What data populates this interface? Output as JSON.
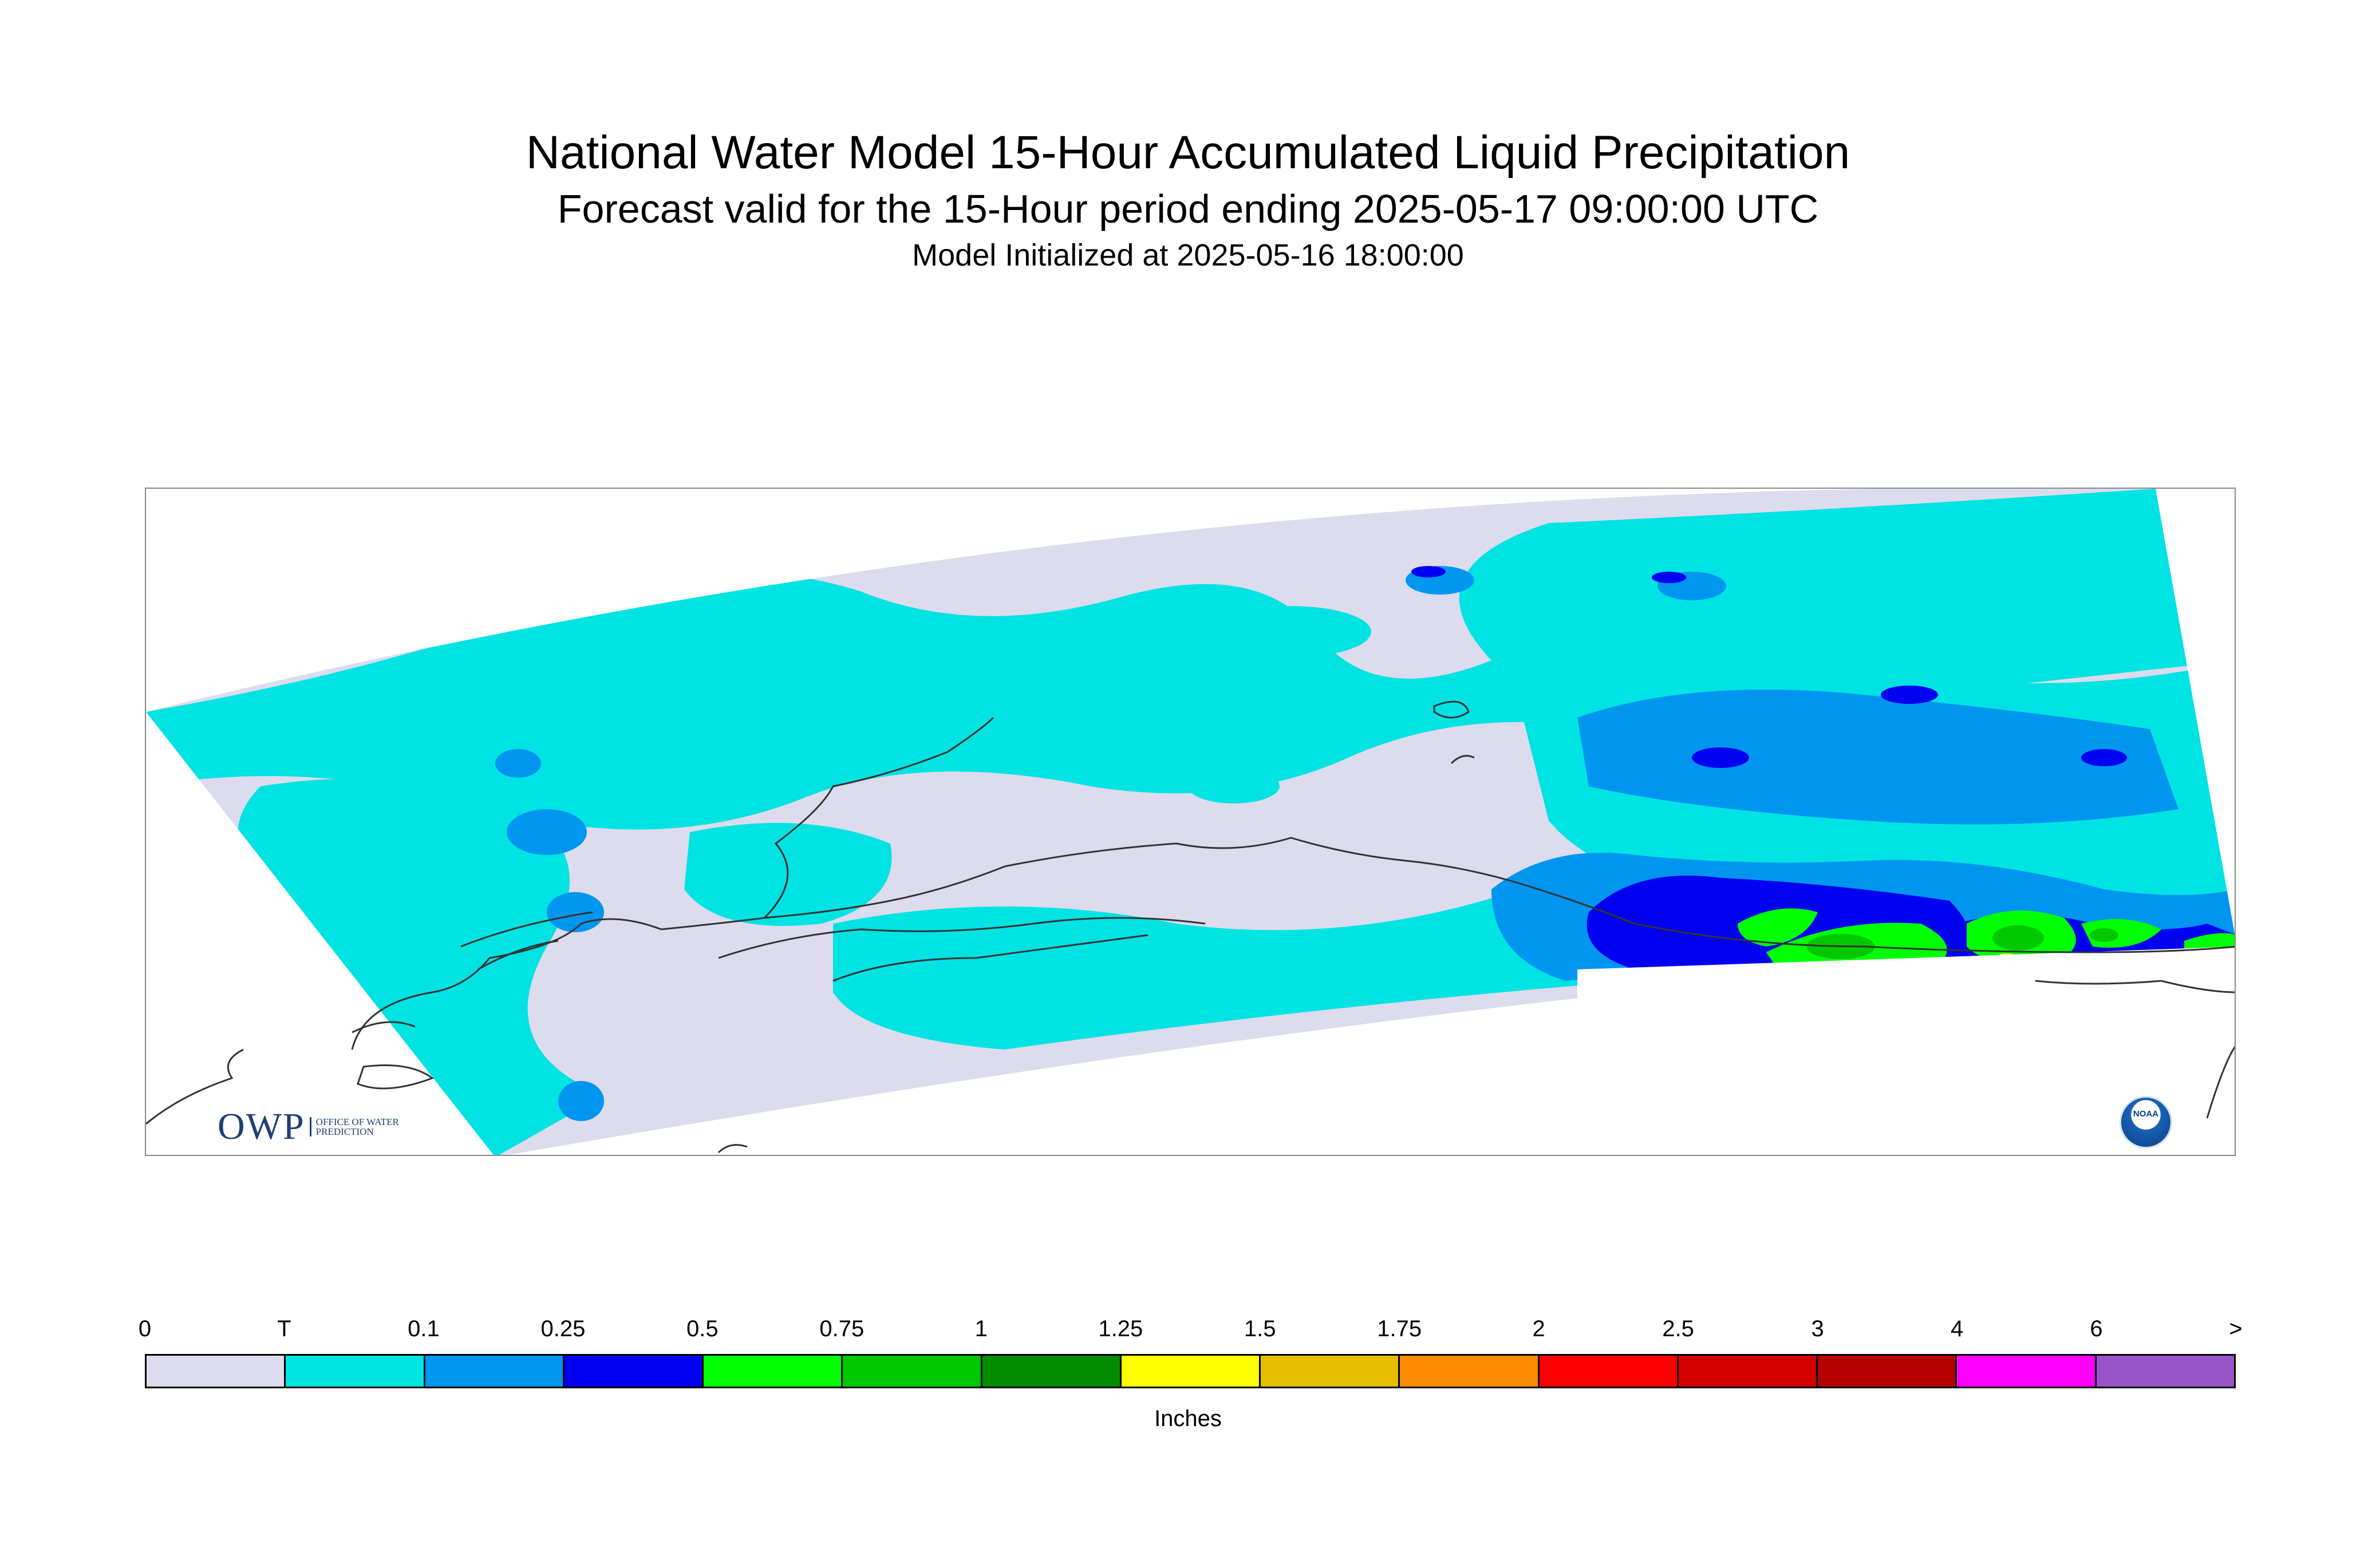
{
  "header": {
    "title": "National Water Model 15-Hour Accumulated Liquid Precipitation",
    "subtitle": "Forecast valid for the 15-Hour period ending 2025-05-17 09:00:00 UTC",
    "init": "Model Initialized at 2025-05-16 18:00:00"
  },
  "logos": {
    "owp_letters": "OWP",
    "owp_text": "Office of Water Prediction",
    "noaa_text": "NOAA"
  },
  "legend": {
    "units": "Inches",
    "tick_labels": [
      "0",
      "T",
      "0.1",
      "0.25",
      "0.5",
      "0.75",
      "1",
      "1.25",
      "1.5",
      "1.75",
      "2",
      "2.5",
      "3",
      "4",
      "6",
      ">"
    ],
    "colors": [
      "#dcdcee",
      "#00e3e3",
      "#0096f0",
      "#0000f0",
      "#00ff00",
      "#00c800",
      "#008c00",
      "#ffff00",
      "#e6be00",
      "#ff8c00",
      "#ff0000",
      "#d20000",
      "#b40000",
      "#ff00ff",
      "#9955c8"
    ]
  },
  "map": {
    "region": "Alaska",
    "colors": {
      "zero": "#dcdcee",
      "trace": "#00e3e3",
      "light": "#0096f0",
      "moderate": "#0000f0",
      "heavy": "#00ff00",
      "heavier": "#00c800",
      "max": "#ffff00",
      "coast": "#333333"
    }
  }
}
